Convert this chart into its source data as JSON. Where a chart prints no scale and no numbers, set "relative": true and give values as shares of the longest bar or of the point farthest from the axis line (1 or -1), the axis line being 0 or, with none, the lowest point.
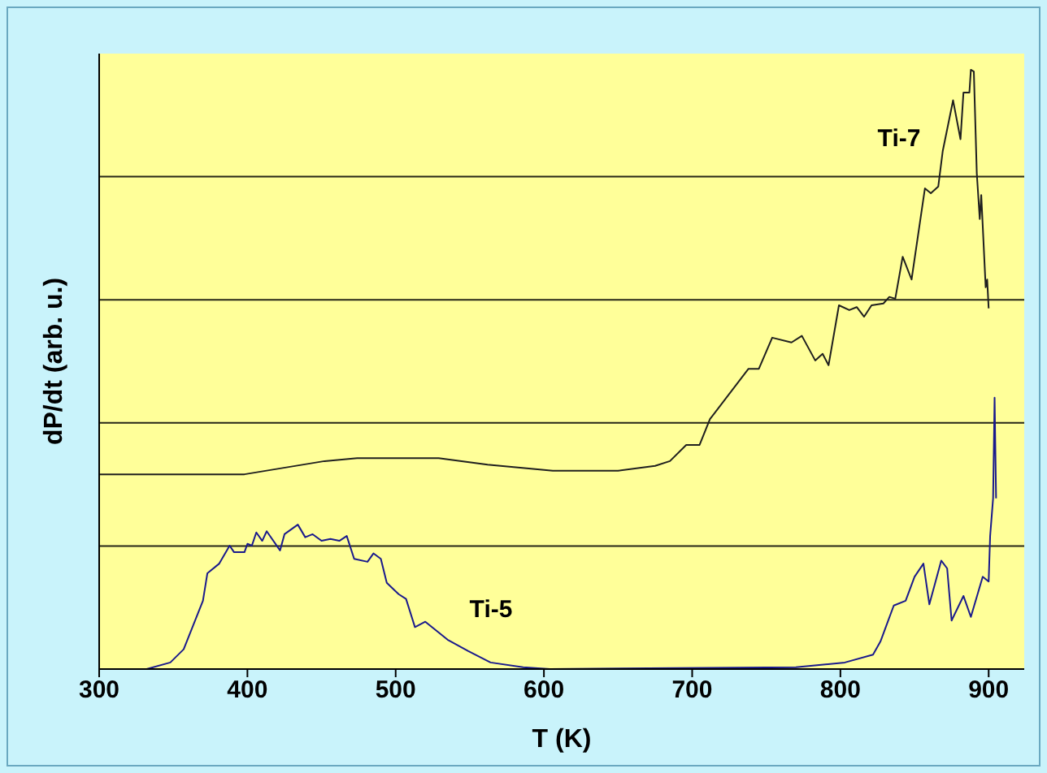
{
  "chart_data": {
    "type": "line",
    "xlabel": "T (K)",
    "ylabel": "dP/dt (arb. u.)",
    "relative": true,
    "grid": "y",
    "marker": "none",
    "line_style": "solid",
    "xlim": [
      300,
      924
    ],
    "xticks": [
      300,
      400,
      500,
      600,
      700,
      800,
      900
    ],
    "annotations": [
      "Ti-7",
      "Ti-5"
    ],
    "series": [
      {
        "color": "#1f1f1f",
        "x": [
          300,
          398,
          452,
          474,
          529,
          562,
          606,
          650,
          675,
          685,
          696,
          705,
          712,
          738,
          745,
          754,
          767,
          774,
          783,
          788,
          792,
          799,
          806,
          811,
          816,
          821,
          829,
          833,
          837,
          842,
          848,
          857,
          861,
          866,
          869,
          876,
          881,
          883,
          887,
          888,
          890,
          892,
          894,
          895,
          898,
          899,
          900
        ],
        "values": [
          0.325,
          0.325,
          0.347,
          0.352,
          0.352,
          0.341,
          0.331,
          0.331,
          0.339,
          0.347,
          0.374,
          0.374,
          0.417,
          0.501,
          0.501,
          0.553,
          0.545,
          0.556,
          0.515,
          0.526,
          0.507,
          0.607,
          0.599,
          0.604,
          0.588,
          0.607,
          0.61,
          0.621,
          0.618,
          0.688,
          0.65,
          0.802,
          0.794,
          0.805,
          0.864,
          0.949,
          0.884,
          0.962,
          0.962,
          1.0,
          0.997,
          0.827,
          0.751,
          0.791,
          0.637,
          0.65,
          0.602
        ]
      },
      {
        "color": "#1a1a8c",
        "x": [
          300,
          332,
          348,
          357,
          370,
          373,
          381,
          388,
          391,
          398,
          400,
          403,
          406,
          410,
          413,
          422,
          425,
          434,
          439,
          444,
          450,
          456,
          462,
          467,
          472,
          481,
          485,
          490,
          494,
          502,
          507,
          513,
          520,
          527,
          535,
          549,
          564,
          586,
          604,
          770,
          803,
          822,
          827,
          836,
          844,
          850,
          856,
          860,
          868,
          872,
          875,
          883,
          888,
          896,
          900,
          901,
          903,
          904,
          905
        ],
        "values": [
          0,
          0,
          0.011,
          0.033,
          0.114,
          0.16,
          0.176,
          0.206,
          0.195,
          0.195,
          0.209,
          0.206,
          0.228,
          0.214,
          0.23,
          0.198,
          0.225,
          0.241,
          0.22,
          0.225,
          0.214,
          0.217,
          0.214,
          0.222,
          0.184,
          0.179,
          0.193,
          0.184,
          0.144,
          0.125,
          0.117,
          0.07,
          0.079,
          0.065,
          0.049,
          0.03,
          0.011,
          0.003,
          0,
          0.003,
          0.011,
          0.024,
          0.046,
          0.106,
          0.114,
          0.154,
          0.176,
          0.108,
          0.181,
          0.168,
          0.081,
          0.122,
          0.087,
          0.154,
          0.146,
          0.222,
          0.285,
          0.453,
          0.285
        ]
      }
    ]
  }
}
